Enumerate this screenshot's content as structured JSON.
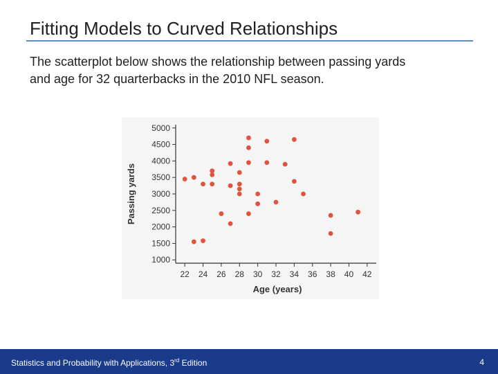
{
  "slide": {
    "title": "Fitting Models to Curved Relationships",
    "body_line_1": "The scatterplot below shows the relationship between passing yards",
    "body_line_2": "and age for 32 quarterbacks in the 2010 NFL season."
  },
  "footer": {
    "text_before_sup": "Statistics and Probability with Applications, 3",
    "sup": "rd",
    "text_after_sup": " Edition",
    "page_number": "4"
  },
  "colors": {
    "accent_rule": "#5b8fc4",
    "footer_bg": "#1a3a8a",
    "point": "#e0533f",
    "axis": "#333333"
  },
  "chart_data": {
    "type": "scatter",
    "xlabel": "Age (years)",
    "ylabel": "Passing yards",
    "xlim": [
      21,
      43
    ],
    "ylim": [
      900,
      5100
    ],
    "x_ticks": [
      22,
      24,
      26,
      28,
      30,
      32,
      34,
      36,
      38,
      40,
      42
    ],
    "y_ticks": [
      1000,
      1500,
      2000,
      2500,
      3000,
      3500,
      4000,
      4500,
      5000
    ],
    "grid": false,
    "legend": "none",
    "points": [
      {
        "x": 22,
        "y": 3450
      },
      {
        "x": 23,
        "y": 3500
      },
      {
        "x": 23,
        "y": 1550
      },
      {
        "x": 24,
        "y": 3300
      },
      {
        "x": 24,
        "y": 1580
      },
      {
        "x": 25,
        "y": 3700
      },
      {
        "x": 25,
        "y": 3580
      },
      {
        "x": 25,
        "y": 3300
      },
      {
        "x": 26,
        "y": 2400
      },
      {
        "x": 27,
        "y": 3920
      },
      {
        "x": 27,
        "y": 3250
      },
      {
        "x": 27,
        "y": 2100
      },
      {
        "x": 28,
        "y": 3650
      },
      {
        "x": 28,
        "y": 3300
      },
      {
        "x": 28,
        "y": 3150
      },
      {
        "x": 28,
        "y": 3000
      },
      {
        "x": 29,
        "y": 4700
      },
      {
        "x": 29,
        "y": 4400
      },
      {
        "x": 29,
        "y": 3950
      },
      {
        "x": 29,
        "y": 2400
      },
      {
        "x": 30,
        "y": 3000
      },
      {
        "x": 30,
        "y": 2700
      },
      {
        "x": 31,
        "y": 4600
      },
      {
        "x": 31,
        "y": 3950
      },
      {
        "x": 32,
        "y": 2750
      },
      {
        "x": 33,
        "y": 3900
      },
      {
        "x": 34,
        "y": 4650
      },
      {
        "x": 34,
        "y": 3380
      },
      {
        "x": 35,
        "y": 3000
      },
      {
        "x": 38,
        "y": 2350
      },
      {
        "x": 38,
        "y": 1800
      },
      {
        "x": 41,
        "y": 2450
      }
    ]
  }
}
